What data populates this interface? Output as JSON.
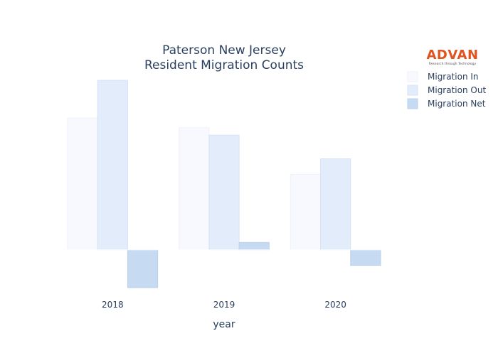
{
  "chart_data": {
    "type": "bar",
    "title": {
      "line1": "Paterson New Jersey",
      "line2": "Resident Migration Counts"
    },
    "xlabel": "year",
    "ylabel": "",
    "categories": [
      "2018",
      "2019",
      "2020"
    ],
    "series": [
      {
        "name": "Migration In",
        "values": [
          1780,
          1650,
          1020
        ],
        "color": "#f7f9fe",
        "stroke": "#eef2fb"
      },
      {
        "name": "Migration Out",
        "values": [
          2290,
          1550,
          1230
        ],
        "color": "#e3ecfa",
        "stroke": "#d7e3f7"
      },
      {
        "name": "Migration Net",
        "values": [
          -510,
          100,
          -210
        ],
        "color": "#c6dbf2",
        "stroke": "#b9d2ee"
      }
    ],
    "ylim": [
      -540,
      2320
    ],
    "y_axis_visible": false,
    "grid": false,
    "zero_line": true,
    "legend_placement": "top-right",
    "brand": {
      "logo_text": "ADVAN",
      "tagline": "Research through Technology",
      "logo_color": "#e2541f"
    }
  }
}
